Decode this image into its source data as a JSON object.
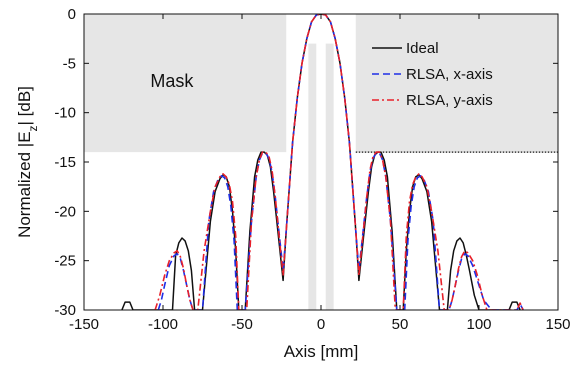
{
  "chart_data": {
    "type": "line",
    "title": "",
    "xlabel": "Axis [mm]",
    "ylabel": "Normalized |E",
    "ylabel_subscript": "z",
    "ylabel_suffix": "| [dB]",
    "xlim": [
      -150,
      150
    ],
    "ylim": [
      -30,
      0
    ],
    "xticks": [
      -150,
      -100,
      -50,
      0,
      50,
      100,
      150
    ],
    "yticks": [
      0,
      -5,
      -10,
      -15,
      -20,
      -25,
      -30
    ],
    "grid": false,
    "legend_position": "top-right",
    "mask_label": "Mask",
    "mask_level": -14,
    "colors": {
      "ideal": "#111111",
      "x_axis": "#1f2ee6",
      "y_axis": "#e8202a",
      "mask": "#e6e6e6",
      "mask_line": "#111111"
    },
    "series": [
      {
        "name": "Ideal",
        "key": "ideal",
        "dash": "",
        "x": [
          -126,
          -124,
          -121,
          -119,
          -94,
          -92,
          -90,
          -88,
          -86,
          -84,
          -82,
          -80,
          -75,
          -70,
          -67,
          -64,
          -62,
          -60,
          -58,
          -56,
          -54,
          -52,
          -48,
          -45,
          -42,
          -40,
          -38,
          -36,
          -34,
          -32,
          -30,
          -28,
          -24,
          -22,
          -18,
          -15,
          -12,
          -9,
          -6,
          -3,
          0,
          3,
          6,
          9,
          12,
          15,
          18,
          22,
          24,
          28,
          30,
          32,
          34,
          36,
          38,
          40,
          42,
          45,
          48,
          52,
          54,
          56,
          58,
          60,
          62,
          64,
          67,
          70,
          75,
          80,
          82,
          84,
          86,
          88,
          90,
          92,
          94,
          97,
          100,
          104,
          106,
          119,
          121,
          124,
          126
        ],
        "y": [
          -30,
          -29.2,
          -29.2,
          -30,
          -30,
          -24.5,
          -23.2,
          -22.7,
          -23.0,
          -24.0,
          -26.0,
          -30,
          -30,
          -21.0,
          -18.0,
          -16.7,
          -16.3,
          -16.5,
          -17.5,
          -20.0,
          -24.0,
          -30,
          -30,
          -22.0,
          -16.5,
          -14.8,
          -14.0,
          -14.0,
          -14.3,
          -15.5,
          -18.0,
          -21.0,
          -27.0,
          -22.0,
          -13.0,
          -8.5,
          -5.0,
          -2.5,
          -0.8,
          -0.1,
          0,
          -0.1,
          -0.8,
          -2.5,
          -5.0,
          -8.5,
          -13.0,
          -22.0,
          -27.0,
          -21.0,
          -18.0,
          -15.5,
          -14.3,
          -14.0,
          -14.0,
          -14.8,
          -16.5,
          -22.0,
          -30,
          -30,
          -24.0,
          -20.0,
          -17.5,
          -16.5,
          -16.3,
          -16.7,
          -18.0,
          -21.0,
          -30,
          -30,
          -26.0,
          -24.0,
          -23.0,
          -22.7,
          -23.2,
          -24.5,
          -26.0,
          -28.5,
          -30,
          -30,
          -30,
          -30,
          -29.2,
          -29.2,
          -30
        ]
      },
      {
        "name": "RLSA, x-axis",
        "key": "x_axis",
        "dash": "7,4",
        "x": [
          -103,
          -101,
          -99,
          -96,
          -93,
          -91,
          -89,
          -87,
          -85,
          -83,
          -81,
          -75,
          -71,
          -68,
          -65,
          -63,
          -61,
          -59,
          -57,
          -55,
          -53,
          -48,
          -44,
          -41,
          -39,
          -37,
          -35,
          -33,
          -31,
          -29,
          -24,
          -22,
          -18,
          -15,
          -12,
          -9,
          -6,
          -3,
          0,
          3,
          6,
          9,
          12,
          15,
          18,
          22,
          24,
          29,
          31,
          33,
          35,
          37,
          39,
          41,
          44,
          48,
          53,
          55,
          57,
          59,
          61,
          63,
          65,
          68,
          71,
          75,
          81,
          83,
          85,
          87,
          89,
          91,
          93,
          96,
          99,
          101,
          103,
          106,
          108,
          124,
          126,
          128
        ],
        "y": [
          -30,
          -29.0,
          -27.5,
          -25.5,
          -24.5,
          -24.3,
          -24.8,
          -26.0,
          -27.5,
          -29.0,
          -30,
          -30,
          -21.0,
          -18.0,
          -16.7,
          -16.4,
          -16.6,
          -17.5,
          -19.5,
          -23.0,
          -30,
          -30,
          -21.0,
          -16.5,
          -14.8,
          -14.1,
          -14.1,
          -14.6,
          -16.0,
          -18.5,
          -26.0,
          -22.0,
          -13.0,
          -8.5,
          -5.0,
          -2.5,
          -0.8,
          -0.1,
          0,
          -0.1,
          -0.8,
          -2.5,
          -5.0,
          -8.5,
          -13.0,
          -22.0,
          -26.0,
          -18.5,
          -16.0,
          -14.6,
          -14.1,
          -14.1,
          -14.8,
          -16.5,
          -21.0,
          -30,
          -30,
          -23.0,
          -19.5,
          -17.5,
          -16.6,
          -16.4,
          -16.7,
          -18.0,
          -21.0,
          -30,
          -30,
          -29.0,
          -27.5,
          -26.0,
          -24.8,
          -24.3,
          -24.5,
          -25.5,
          -27.0,
          -28.0,
          -29.0,
          -29.6,
          -30,
          -30,
          -29.4,
          -30
        ]
      },
      {
        "name": "RLSA, y-axis",
        "key": "y_axis",
        "dash": "7,3,2,3",
        "x": [
          -105,
          -102,
          -99,
          -96,
          -93,
          -91,
          -89,
          -87,
          -85,
          -83,
          -81,
          -78,
          -74,
          -70,
          -67,
          -64,
          -62,
          -60,
          -58,
          -56,
          -54,
          -52,
          -47,
          -44,
          -41,
          -39,
          -37,
          -35,
          -33,
          -31,
          -29,
          -24,
          -22,
          -18,
          -15,
          -12,
          -9,
          -6,
          -3,
          0,
          3,
          6,
          9,
          12,
          15,
          18,
          22,
          24,
          29,
          31,
          33,
          35,
          37,
          39,
          41,
          44,
          47,
          52,
          54,
          56,
          58,
          60,
          62,
          64,
          67,
          70,
          74,
          78,
          81,
          83,
          85,
          87,
          89,
          91,
          93,
          96,
          99,
          102,
          105,
          124,
          126,
          128
        ],
        "y": [
          -30,
          -28.5,
          -26.5,
          -25.0,
          -24.2,
          -24.0,
          -24.6,
          -25.8,
          -27.5,
          -29.0,
          -30,
          -30,
          -24.0,
          -20.0,
          -17.5,
          -16.5,
          -16.2,
          -16.5,
          -17.3,
          -19.0,
          -22.5,
          -30,
          -30,
          -21.0,
          -16.5,
          -14.8,
          -14.0,
          -14.0,
          -14.4,
          -15.8,
          -18.5,
          -26.5,
          -22.0,
          -13.0,
          -8.5,
          -5.0,
          -2.5,
          -0.8,
          -0.1,
          0,
          -0.1,
          -0.8,
          -2.5,
          -5.0,
          -8.5,
          -13.0,
          -22.0,
          -26.5,
          -18.5,
          -15.8,
          -14.4,
          -14.0,
          -14.0,
          -14.8,
          -16.5,
          -21.0,
          -30,
          -30,
          -22.5,
          -19.0,
          -17.3,
          -16.5,
          -16.2,
          -16.5,
          -17.5,
          -20.0,
          -24.0,
          -30,
          -30,
          -29.0,
          -27.5,
          -25.8,
          -24.6,
          -24.0,
          -24.2,
          -25.0,
          -26.5,
          -28.5,
          -30,
          -30,
          -29.3,
          -30
        ]
      }
    ]
  }
}
